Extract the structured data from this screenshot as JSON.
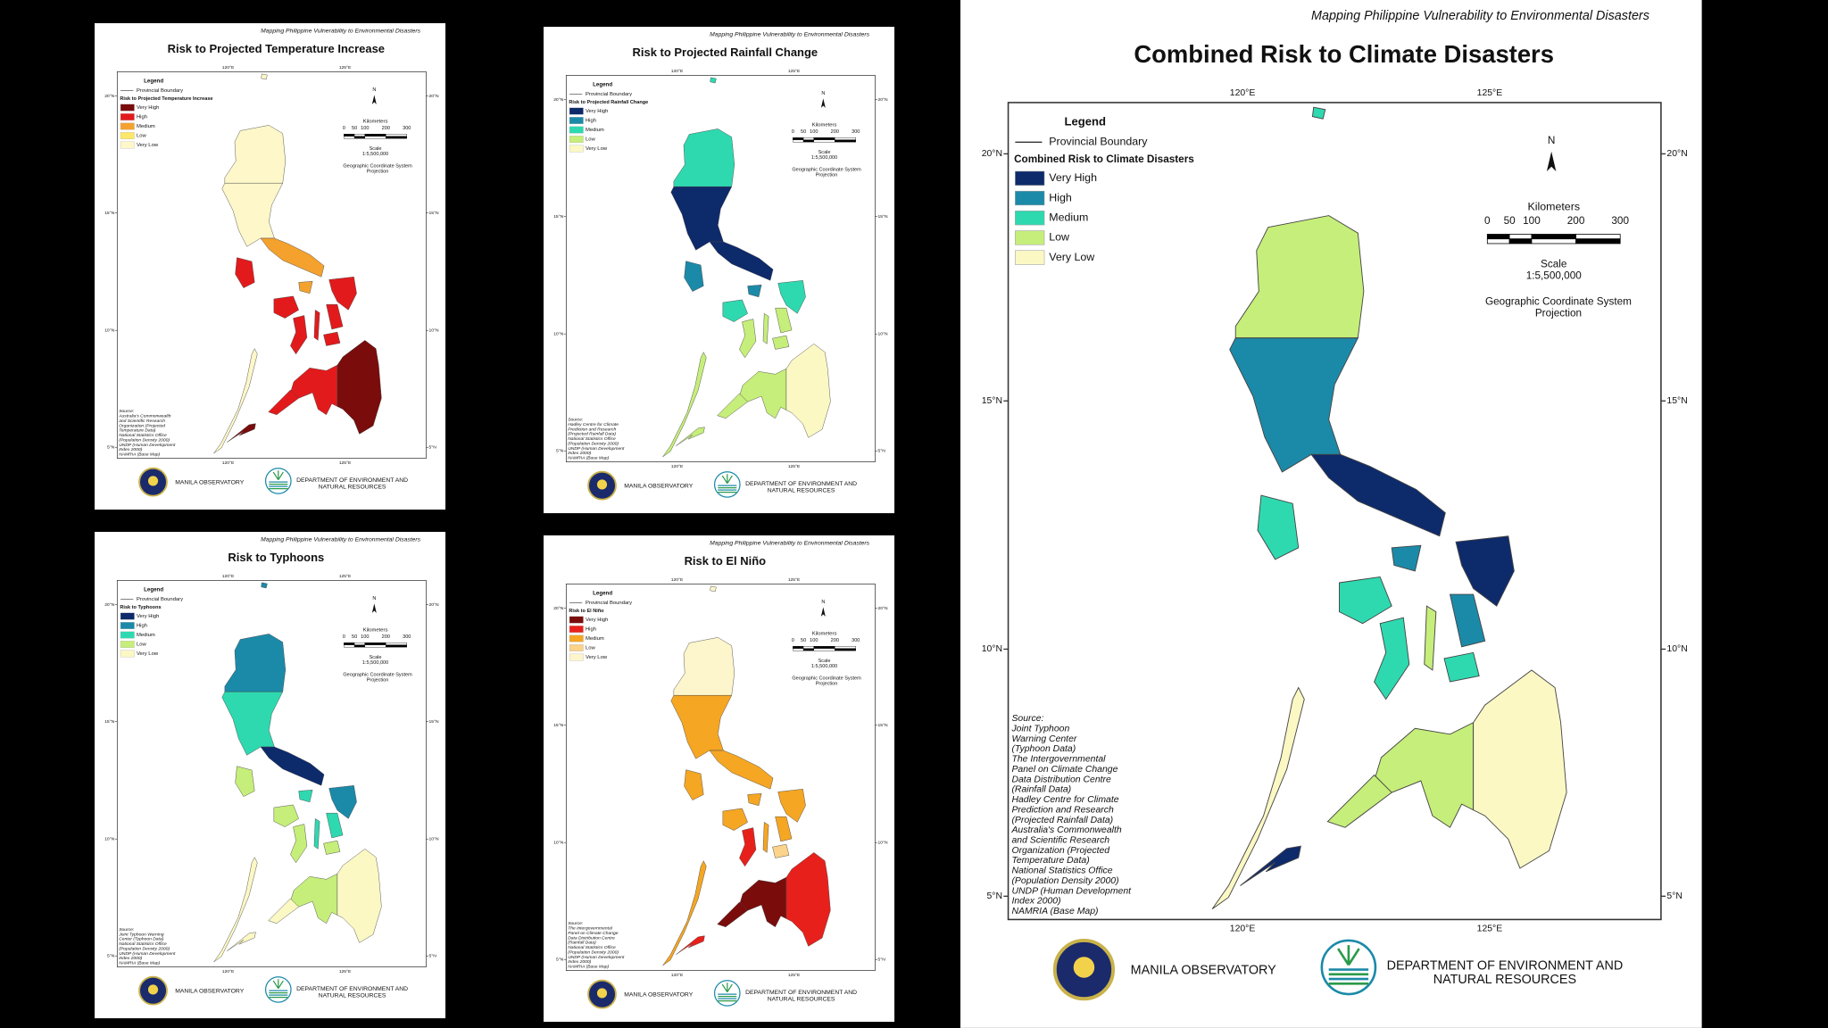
{
  "maps": [
    {
      "header": "Mapping Philippine Vulnerability to Environmental Disasters",
      "title": "Risk to Projected Temperature Increase",
      "legend": {
        "heading": "Legend",
        "boundary": "Provincial Boundary",
        "subtitle": "Risk to Projected Temperature Increase",
        "classes": [
          {
            "label": "Very High",
            "color": "#7a0c0c"
          },
          {
            "label": "High",
            "color": "#e31a1c"
          },
          {
            "label": "Medium",
            "color": "#f4a22d"
          },
          {
            "label": "Low",
            "color": "#fde86b"
          },
          {
            "label": "Very Low",
            "color": "#fdf7c9"
          }
        ]
      },
      "north": "N",
      "scale": {
        "unit": "Kilometers",
        "ticks": [
          0,
          50,
          100,
          200,
          300
        ],
        "ratio": [
          "Scale",
          "1:5,500,000"
        ],
        "projection": [
          "Geographic Coordinate System",
          "Projection"
        ]
      },
      "lat_labels": [
        "20°N",
        "15°N",
        "10°N",
        "5°N"
      ],
      "lon_labels": [
        "120°E",
        "125°E"
      ],
      "source": [
        "Source:",
        "Australia's Commonwealth",
        "and Scientific Research",
        "Organization (Projected",
        "Temperature Data)",
        "National Statistics Office",
        "(Population Density 2000)",
        "UNDP (Human Development",
        "Index 2000)",
        "NAMRIA (Base Map)"
      ],
      "logos": {
        "observatory": "MANILA OBSERVATORY",
        "denr": [
          "DEPARTMENT OF ENVIRONMENT AND",
          "NATURAL RESOURCES"
        ]
      }
    },
    {
      "header": "Mapping Philippine Vulnerability to Environmental Disasters",
      "title": "Risk to Projected Rainfall Change",
      "legend": {
        "heading": "Legend",
        "boundary": "Provincial Boundary",
        "subtitle": "Risk to Projected Rainfall Change",
        "classes": [
          {
            "label": "Very High",
            "color": "#0d2a6b"
          },
          {
            "label": "High",
            "color": "#1b8aa8"
          },
          {
            "label": "Medium",
            "color": "#2ed9b0"
          },
          {
            "label": "Low",
            "color": "#c6ee7a"
          },
          {
            "label": "Very Low",
            "color": "#fbf8c4"
          }
        ]
      },
      "north": "N",
      "scale": {
        "unit": "Kilometers",
        "ticks": [
          0,
          50,
          100,
          200,
          300
        ],
        "ratio": [
          "Scale",
          "1:5,500,000"
        ],
        "projection": [
          "Geographic Coordinate System",
          "Projection"
        ]
      },
      "lat_labels": [
        "20°N",
        "15°N",
        "10°N",
        "5°N"
      ],
      "lon_labels": [
        "120°E",
        "125°E"
      ],
      "source": [
        "Source:",
        "Hadley Centre for Climate",
        "Prediction and Research",
        "(Projected Rainfall Data)",
        "National Statistics Office",
        "(Population Density 2000)",
        "UNDP (Human Development",
        "Index 2000)",
        "NAMRIA (Base Map)"
      ],
      "logos": {
        "observatory": "MANILA OBSERVATORY",
        "denr": [
          "DEPARTMENT OF ENVIRONMENT AND",
          "NATURAL RESOURCES"
        ]
      }
    },
    {
      "header": "Mapping Philippine Vulnerability to Environmental Disasters",
      "title": "Risk to Typhoons",
      "legend": {
        "heading": "Legend",
        "boundary": "Provincial Boundary",
        "subtitle": "Risk to Typhoons",
        "classes": [
          {
            "label": "Very High",
            "color": "#0d2a6b"
          },
          {
            "label": "High",
            "color": "#1b8aa8"
          },
          {
            "label": "Medium",
            "color": "#2ed9b0"
          },
          {
            "label": "Low",
            "color": "#c6ee7a"
          },
          {
            "label": "Very Low",
            "color": "#fbf8c4"
          }
        ]
      },
      "north": "N",
      "scale": {
        "unit": "Kilometers",
        "ticks": [
          0,
          50,
          100,
          200,
          300
        ],
        "ratio": [
          "Scale",
          "1:5,500,000"
        ],
        "projection": [
          "Geographic Coordinate System",
          "Projection"
        ]
      },
      "lat_labels": [
        "20°N",
        "15°N",
        "10°N",
        "5°N"
      ],
      "lon_labels": [
        "120°E",
        "125°E"
      ],
      "source": [
        "Source:",
        "Joint Typhoon Warning",
        "Center (Typhoon Data)",
        "National Statistics Office",
        "(Population Density 2000)",
        "UNDP (Human Development",
        "Index 2000)",
        "NAMRIA (Base Map)"
      ],
      "logos": {
        "observatory": "MANILA OBSERVATORY",
        "denr": [
          "DEPARTMENT OF ENVIRONMENT AND",
          "NATURAL RESOURCES"
        ]
      }
    },
    {
      "header": "Mapping Philippine Vulnerability to Environmental Disasters",
      "title": "Risk to El Niño",
      "legend": {
        "heading": "Legend",
        "boundary": "Provincial Boundary",
        "subtitle": "Risk to El Niño",
        "classes": [
          {
            "label": "Very High",
            "color": "#7a0c0c"
          },
          {
            "label": "High",
            "color": "#e8201c"
          },
          {
            "label": "Medium",
            "color": "#f5a623"
          },
          {
            "label": "Low",
            "color": "#fbd38a"
          },
          {
            "label": "Very Low",
            "color": "#fdf5cc"
          }
        ]
      },
      "north": "N",
      "scale": {
        "unit": "Kilometers",
        "ticks": [
          0,
          50,
          100,
          200,
          300
        ],
        "ratio": [
          "Scale",
          "1:5,500,000"
        ],
        "projection": [
          "Geographic Coordinate System",
          "Projection"
        ]
      },
      "lat_labels": [
        "20°N",
        "15°N",
        "10°N",
        "5°N"
      ],
      "lon_labels": [
        "120°E",
        "125°E"
      ],
      "source": [
        "Source:",
        "The Intergovernmental",
        "Panel on Climate Change",
        "Data Distribution Centre",
        "(Rainfall Data)",
        "National Statistics Office",
        "(Population Density 2000)",
        "UNDP (Human Development",
        "Index 2000)",
        "NAMRIA (Base Map)"
      ],
      "logos": {
        "observatory": "MANILA OBSERVATORY",
        "denr": [
          "DEPARTMENT OF ENVIRONMENT AND",
          "NATURAL RESOURCES"
        ]
      }
    },
    {
      "header": "Mapping Philippine Vulnerability to Environmental Disasters",
      "title": "Combined Risk to Climate Disasters",
      "legend": {
        "heading": "Legend",
        "boundary": "Provincial Boundary",
        "subtitle": "Combined Risk to Climate Disasters",
        "classes": [
          {
            "label": "Very High",
            "color": "#0d2a6b"
          },
          {
            "label": "High",
            "color": "#1b8aa8"
          },
          {
            "label": "Medium",
            "color": "#2ed9b0"
          },
          {
            "label": "Low",
            "color": "#c6ee7a"
          },
          {
            "label": "Very Low",
            "color": "#fbf8c4"
          }
        ]
      },
      "north": "N",
      "scale": {
        "unit": "Kilometers",
        "ticks": [
          0,
          50,
          100,
          200,
          300
        ],
        "ratio": [
          "Scale",
          "1:5,500,000"
        ],
        "projection": [
          "Geographic Coordinate System",
          "Projection"
        ]
      },
      "lat_labels": [
        "20°N",
        "15°N",
        "10°N",
        "5°N"
      ],
      "lon_labels": [
        "120°E",
        "125°E"
      ],
      "source": [
        "Source:",
        "Joint Typhoon",
        "Warning Center",
        "(Typhoon Data)",
        "The Intergovernmental",
        "Panel on Climate Change",
        "Data Distribution Centre",
        "(Rainfall Data)",
        "Hadley Centre for Climate",
        "Prediction and Research",
        "(Projected Rainfall Data)",
        "Australia's Commonwealth",
        "and Scientific Research",
        "Organization (Projected",
        "Temperature Data)",
        "National Statistics Office",
        "(Population Density 2000)",
        "UNDP (Human Development",
        "Index 2000)",
        "NAMRIA (Base Map)"
      ],
      "logos": {
        "observatory": "MANILA OBSERVATORY",
        "denr": [
          "DEPARTMENT OF ENVIRONMENT AND",
          "NATURAL RESOURCES"
        ]
      }
    }
  ]
}
